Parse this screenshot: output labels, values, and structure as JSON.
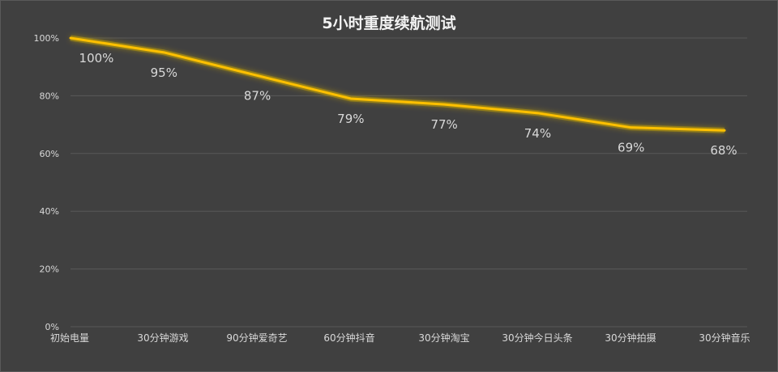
{
  "chart_data": {
    "type": "line",
    "title": "5小时重度续航测试",
    "xlabel": "",
    "ylabel": "",
    "categories": [
      "初始电量",
      "30分钟游戏",
      "90分钟爱奇艺",
      "60分钟抖音",
      "30分钟淘宝",
      "30分钟今日头条",
      "30分钟拍摄",
      "30分钟音乐"
    ],
    "series": [
      {
        "values": [
          100,
          95,
          87,
          79,
          77,
          74,
          69,
          68
        ]
      }
    ],
    "data_labels": [
      "100%",
      "95%",
      "87%",
      "79%",
      "77%",
      "74%",
      "69%",
      "68%"
    ],
    "y_ticks": [
      "0%",
      "20%",
      "40%",
      "60%",
      "80%",
      "100%"
    ],
    "ylim": [
      0,
      100
    ],
    "grid": true,
    "legend": "none",
    "line_color": "#ffc000",
    "glow_color": "#c9a600"
  }
}
